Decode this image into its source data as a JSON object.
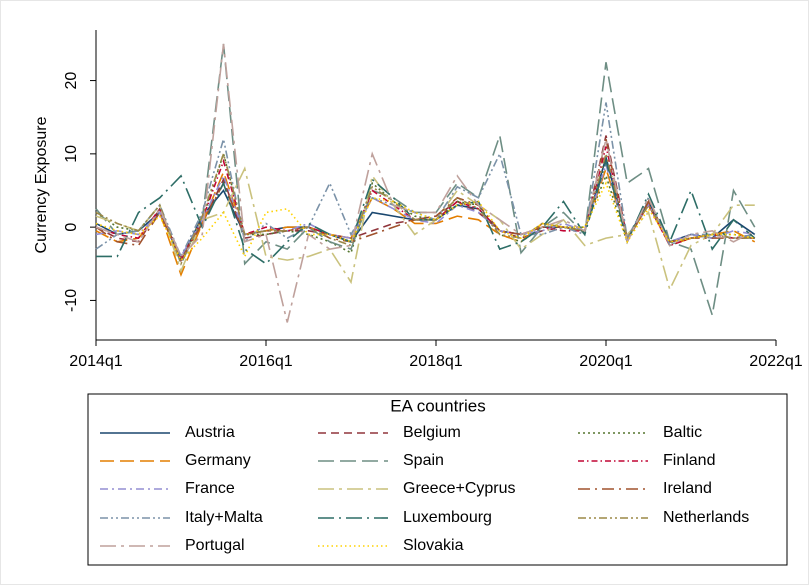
{
  "chart_data": {
    "type": "line",
    "y_label": "Currency Exposure",
    "x": [
      2014,
      2014.25,
      2014.5,
      2014.75,
      2015,
      2015.25,
      2015.5,
      2015.75,
      2016,
      2016.25,
      2016.5,
      2016.75,
      2017,
      2017.25,
      2017.5,
      2017.75,
      2018,
      2018.25,
      2018.5,
      2018.75,
      2019,
      2019.25,
      2019.5,
      2019.75,
      2020,
      2020.25,
      2020.5,
      2020.75,
      2021,
      2021.25,
      2021.5,
      2021.75
    ],
    "xlim": [
      2014,
      2022
    ],
    "xticks": [
      {
        "value": 2014,
        "label": "2014q1"
      },
      {
        "value": 2016,
        "label": "2016q1"
      },
      {
        "value": 2018,
        "label": "2018q1"
      },
      {
        "value": 2020,
        "label": "2020q1"
      },
      {
        "value": 2022,
        "label": "2022q1"
      }
    ],
    "ylim": [
      -15.4,
      26.9
    ],
    "yticks": [
      -10,
      0,
      10,
      20
    ],
    "grid": false,
    "legend_title": "EA countries",
    "legend_position": "bottom",
    "series": [
      {
        "name": "Austria",
        "color": "#1a476f",
        "values": [
          0.5,
          -1,
          -0.5,
          2,
          -4.5,
          1.5,
          5,
          -1,
          -0.5,
          0,
          0,
          -1,
          -2,
          2,
          1.5,
          1,
          1,
          3,
          2.5,
          -0.5,
          -1,
          0,
          0,
          -0.5,
          9.5,
          -1.5,
          3.5,
          -2,
          -1,
          -1.5,
          1,
          -1
        ]
      },
      {
        "name": "Belgium",
        "color": "#90353b",
        "values": [
          0,
          -1.5,
          -2,
          2.5,
          -4,
          0.5,
          6.5,
          -1.5,
          -1,
          -0.5,
          -0.5,
          -1,
          -1.5,
          -0.5,
          0.5,
          1,
          1.5,
          3.5,
          2,
          -0.5,
          -1.5,
          -0.5,
          0,
          -0.5,
          12.5,
          -1.5,
          3,
          -2,
          -1.5,
          -1,
          -1.5,
          -1.5
        ]
      },
      {
        "name": "Baltic",
        "color": "#55752f",
        "values": [
          2,
          0,
          -0.5,
          3,
          -4.5,
          1,
          10,
          -1,
          -1,
          -0.5,
          -1,
          -2,
          -3.5,
          6,
          3.5,
          1.5,
          1,
          3.5,
          3,
          -1,
          -2,
          0,
          0,
          0,
          7,
          -2,
          4,
          -2.5,
          -1.5,
          -1,
          -1,
          -1.5
        ]
      },
      {
        "name": "Germany",
        "color": "#e37e00",
        "values": [
          -0.5,
          -2,
          -1.5,
          2,
          -6.5,
          0.5,
          7.5,
          -1,
          -0.5,
          0,
          0,
          -1,
          -1.5,
          4,
          2.5,
          0.5,
          0.5,
          1.5,
          1,
          -1,
          -2,
          0.5,
          0,
          -0.5,
          8,
          -1.5,
          3,
          -2.5,
          -1.5,
          -1,
          -0.5,
          -2
        ]
      },
      {
        "name": "Spain",
        "color": "#6e8e84",
        "values": [
          2.5,
          -1,
          -0.5,
          3,
          -5,
          1,
          25,
          -5,
          -2,
          -3,
          0,
          -2,
          -3,
          5,
          4,
          2,
          2,
          6,
          4,
          12.5,
          -3.5,
          0,
          2,
          -1,
          22.5,
          6,
          8,
          -2,
          -3,
          -12,
          5,
          0
        ]
      },
      {
        "name": "Finland",
        "color": "#c10534",
        "values": [
          0,
          -1,
          -1.5,
          2.5,
          -4.5,
          1,
          9,
          -1,
          0,
          -0.5,
          0,
          -1,
          -2,
          5,
          3,
          1,
          1,
          3.5,
          2.5,
          -0.5,
          -1,
          0,
          -0.5,
          -0.5,
          11,
          -1.5,
          3,
          -2.5,
          -1.5,
          -1,
          -1.5,
          -1
        ]
      },
      {
        "name": "France",
        "color": "#938dd2",
        "values": [
          -1,
          -0.5,
          -1,
          2,
          -4,
          1,
          7,
          -1,
          -0.5,
          -0.5,
          0.5,
          -1,
          -1.5,
          4,
          2.5,
          1,
          0.5,
          3,
          2,
          -0.5,
          -1,
          -0.5,
          0.5,
          -0.5,
          8.5,
          -1.5,
          3,
          -2,
          -1,
          -1.5,
          -0.5,
          -1
        ]
      },
      {
        "name": "Greece+Cyprus",
        "color": "#cac27e",
        "values": [
          1.5,
          0.5,
          -0.5,
          3,
          -6,
          1,
          2,
          8,
          -4,
          -4.5,
          -4,
          -3,
          -7.5,
          7,
          3,
          -1,
          1,
          5,
          3,
          1,
          -3,
          -1,
          1,
          -2.5,
          -1.5,
          -1,
          2,
          -8.5,
          -2.5,
          -1,
          3,
          3
        ]
      },
      {
        "name": "Ireland",
        "color": "#a0522d",
        "values": [
          0,
          -2,
          -2.5,
          2,
          -4.5,
          0.5,
          6,
          -1,
          -0.5,
          -0.5,
          0,
          -1.5,
          -2,
          -1,
          0,
          1,
          1.5,
          4,
          3,
          -0.5,
          -1,
          0,
          0,
          -0.5,
          12,
          -2,
          3.5,
          -2,
          -1.5,
          -1.5,
          -1.5,
          -1.5
        ]
      },
      {
        "name": "Italy+Malta",
        "color": "#7b92a8",
        "values": [
          -3,
          -1,
          -0.5,
          3,
          -4,
          2,
          12,
          -2,
          0.5,
          -1.5,
          0,
          6,
          -1,
          4,
          3,
          2,
          1,
          5.5,
          4,
          10,
          -1,
          -1,
          0,
          -1,
          17,
          -1.5,
          4,
          -2.5,
          -1,
          -1,
          -1.5,
          -1
        ]
      },
      {
        "name": "Luxembourg",
        "color": "#2d6d66",
        "values": [
          -4,
          -4,
          2,
          4,
          7,
          0,
          6,
          -3,
          -5,
          -2,
          0.5,
          -1,
          -2,
          6.5,
          4,
          1,
          1,
          3,
          3.5,
          -3,
          -2,
          0,
          3.5,
          -1,
          9,
          -2,
          4.5,
          -2,
          5,
          -3,
          1,
          -1.5
        ]
      },
      {
        "name": "Netherlands",
        "color": "#9c8847",
        "values": [
          2,
          0.5,
          -0.5,
          3,
          -5,
          1.5,
          10,
          -1,
          -0.5,
          -0.5,
          0,
          -1.5,
          -2.5,
          5.5,
          3.5,
          1,
          1,
          4,
          2.5,
          -1,
          -1.5,
          0.5,
          0,
          -0.5,
          10,
          -1.5,
          3,
          -2,
          -1.5,
          -1,
          -1.5,
          -1.5
        ]
      },
      {
        "name": "Portugal",
        "color": "#bfa19c",
        "values": [
          0,
          -1,
          -2,
          2.5,
          -4,
          -1,
          25,
          -2,
          -1,
          -13,
          -1,
          -3,
          -2.5,
          10,
          3,
          2,
          2,
          7,
          3,
          1,
          -1,
          0,
          1,
          -0.5,
          12,
          -2,
          4,
          -2.5,
          -1,
          -0.5,
          -2,
          -0.5
        ]
      },
      {
        "name": "Slovakia",
        "color": "#ffd200",
        "values": [
          0.5,
          -0.5,
          -1,
          1.5,
          -4.5,
          -1.5,
          2,
          -4,
          2,
          2.5,
          -1,
          -1,
          -2,
          4,
          3.5,
          2,
          1,
          3,
          3.5,
          -0.5,
          -1.5,
          0.5,
          0,
          0,
          6,
          -2,
          2.5,
          -2,
          -1.5,
          -1,
          -1,
          -1.5
        ]
      }
    ]
  }
}
